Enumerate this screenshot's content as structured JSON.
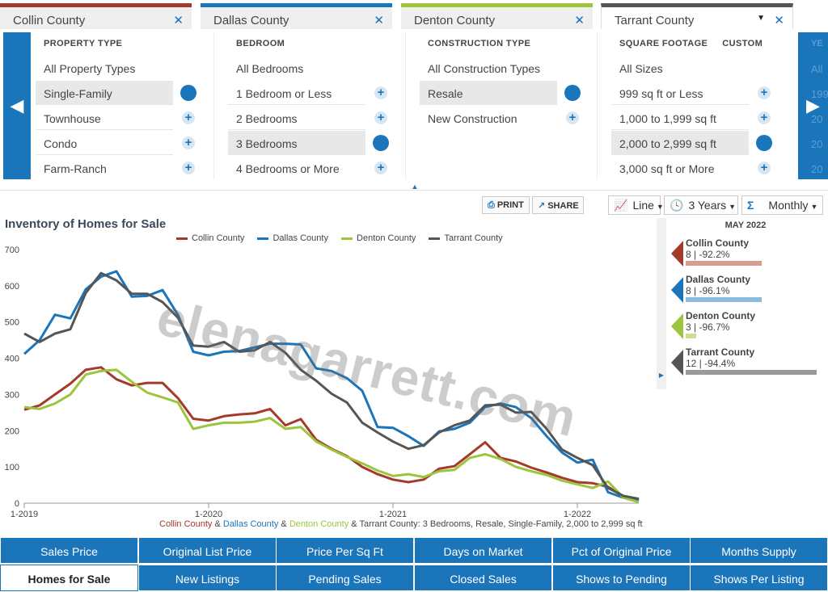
{
  "tabs": [
    {
      "label": "Collin County",
      "color": "#a33a2a",
      "close": "✕"
    },
    {
      "label": "Dallas County",
      "color": "#1b75bb",
      "close": "✕"
    },
    {
      "label": "Denton County",
      "color": "#9cc43c",
      "close": "✕"
    },
    {
      "label": "Tarrant County",
      "color": "#555555",
      "close": "✕",
      "dropdown": "▼"
    }
  ],
  "filters": {
    "property_type": {
      "heading": "PROPERTY TYPE",
      "options": [
        "All Property Types",
        "Single-Family",
        "Townhouse",
        "Condo",
        "Farm-Ranch"
      ],
      "selected": "Single-Family"
    },
    "bedroom": {
      "heading": "BEDROOM",
      "options": [
        "All Bedrooms",
        "1 Bedroom or Less",
        "2 Bedrooms",
        "3 Bedrooms",
        "4 Bedrooms or More"
      ],
      "selected": "3 Bedrooms"
    },
    "construction_type": {
      "heading": "CONSTRUCTION TYPE",
      "options": [
        "All Construction Types",
        "Resale",
        "New Construction"
      ],
      "selected": "Resale"
    },
    "square_footage": {
      "heading": "SQUARE FOOTAGE",
      "custom": "CUSTOM",
      "options": [
        "All Sizes",
        "999 sq ft or Less",
        "1,000 to 1,999 sq ft",
        "2,000 to 2,999 sq ft",
        "3,000 sq ft or More"
      ],
      "selected": "2,000 to 2,999 sq ft"
    },
    "year_partial": {
      "heading": "YE",
      "options": [
        "All",
        "199",
        "20",
        "20",
        "20"
      ]
    }
  },
  "toolbar": {
    "print": "PRINT",
    "share": "SHARE",
    "chart_type": "Line",
    "range": "3 Years",
    "interval": "Monthly"
  },
  "chart_title": "Inventory of Homes for Sale",
  "watermark": "elenagarrett.com",
  "caption": {
    "collin": "Collin County",
    "amp": " & ",
    "dallas": "Dallas County",
    "denton": "Denton County",
    "tarrant": "Tarrant County",
    "rest": ": 3 Bedrooms, Resale, Single-Family, 2,000 to 2,999 sq ft"
  },
  "summary": {
    "title": "MAY 2022",
    "items": [
      {
        "name": "Collin County",
        "value": "8 | -92.2%",
        "color": "#a33a2a",
        "bar_color": "#d99a90",
        "bar_fraction": 0.58
      },
      {
        "name": "Dallas County",
        "value": "8 | -96.1%",
        "color": "#1b75bb",
        "bar_color": "#8cbbe0",
        "bar_fraction": 0.58
      },
      {
        "name": "Denton County",
        "value": "3 | -96.7%",
        "color": "#9cc43c",
        "bar_color": "#c9e08f",
        "bar_fraction": 0.08
      },
      {
        "name": "Tarrant County",
        "value": "12 | -94.4%",
        "color": "#555555",
        "bar_color": "#9a9a9a",
        "bar_fraction": 1.0
      }
    ]
  },
  "metrics": [
    [
      "Sales Price",
      "Original List Price",
      "Price Per Sq Ft",
      "Days on Market",
      "Pct of Original Price",
      "Months Supply"
    ],
    [
      "Homes for Sale",
      "New Listings",
      "Pending Sales",
      "Closed Sales",
      "Shows to Pending",
      "Shows Per Listing"
    ]
  ],
  "active_metric": "Homes for Sale",
  "chart_data": {
    "type": "line",
    "title": "Inventory of Homes for Sale",
    "xlabel": "",
    "ylabel": "",
    "ylim": [
      0,
      700
    ],
    "yticks": [
      0,
      100,
      200,
      300,
      400,
      500,
      600,
      700
    ],
    "xticks": [
      {
        "label": "1-2019",
        "index": 0
      },
      {
        "label": "1-2020",
        "index": 12
      },
      {
        "label": "1-2021",
        "index": 24
      },
      {
        "label": "1-2022",
        "index": 36
      }
    ],
    "x_start": "2019-01",
    "legend_position": "top",
    "grid": false,
    "series": [
      {
        "name": "Collin County",
        "color": "#a33a2a",
        "values": [
          258,
          270,
          300,
          330,
          368,
          375,
          342,
          325,
          332,
          332,
          290,
          233,
          228,
          240,
          245,
          248,
          260,
          215,
          232,
          175,
          150,
          130,
          100,
          80,
          65,
          58,
          65,
          95,
          102,
          135,
          168,
          125,
          115,
          98,
          85,
          70,
          58,
          55,
          45,
          18,
          8
        ]
      },
      {
        "name": "Dallas County",
        "color": "#1b75bb",
        "values": [
          412,
          450,
          520,
          510,
          590,
          625,
          640,
          570,
          572,
          588,
          520,
          418,
          408,
          418,
          420,
          430,
          440,
          440,
          438,
          372,
          365,
          345,
          310,
          210,
          208,
          185,
          158,
          198,
          205,
          222,
          265,
          275,
          265,
          235,
          185,
          140,
          112,
          120,
          30,
          15,
          8
        ]
      },
      {
        "name": "Denton County",
        "color": "#9cc43c",
        "values": [
          265,
          260,
          275,
          300,
          355,
          365,
          368,
          335,
          305,
          292,
          278,
          205,
          215,
          222,
          222,
          225,
          235,
          205,
          210,
          170,
          148,
          128,
          110,
          90,
          75,
          80,
          72,
          88,
          92,
          125,
          135,
          122,
          100,
          88,
          78,
          62,
          52,
          42,
          60,
          15,
          3
        ]
      },
      {
        "name": "Tarrant County",
        "color": "#555555",
        "values": [
          468,
          445,
          468,
          480,
          580,
          635,
          615,
          578,
          578,
          555,
          512,
          435,
          432,
          445,
          418,
          422,
          445,
          415,
          368,
          338,
          302,
          278,
          222,
          195,
          170,
          150,
          160,
          195,
          215,
          228,
          270,
          272,
          250,
          252,
          205,
          148,
          125,
          105,
          42,
          20,
          12
        ]
      }
    ]
  }
}
